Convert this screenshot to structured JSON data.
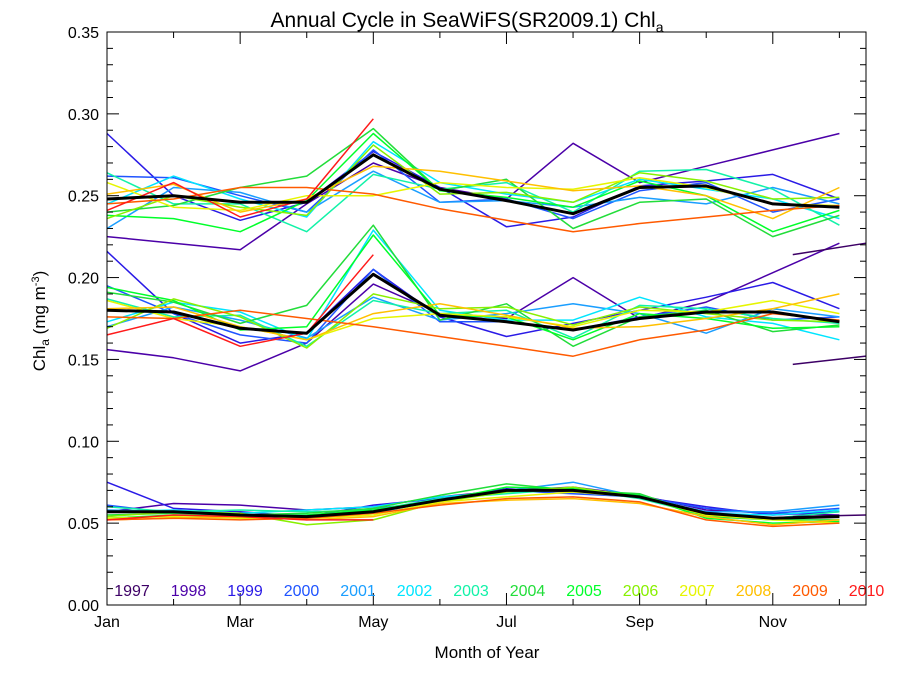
{
  "chart_data": {
    "type": "line",
    "title": {
      "main": "Annual Cycle in SeaWiFS(SR2009.1) Chl",
      "sub": "a"
    },
    "xlabel": "Month of Year",
    "ylabel": {
      "main": "Chl",
      "sub": "a",
      "unit_prefix": " (mg m",
      "unit_sup": "-3",
      "unit_suffix": ")"
    },
    "x_months": [
      1,
      2,
      3,
      4,
      5,
      6,
      7,
      8,
      9,
      10,
      11,
      12
    ],
    "xlim": [
      1,
      12.4
    ],
    "ylim": [
      0,
      0.35
    ],
    "x_ticks": [
      {
        "x": 1,
        "label": "Jan"
      },
      {
        "x": 3,
        "label": "Mar"
      },
      {
        "x": 5,
        "label": "May"
      },
      {
        "x": 7,
        "label": "Jul"
      },
      {
        "x": 9,
        "label": "Sep"
      },
      {
        "x": 11,
        "label": "Nov"
      }
    ],
    "y_ticks": [
      {
        "y": 0.0,
        "label": "0.00"
      },
      {
        "y": 0.05,
        "label": "0.05"
      },
      {
        "y": 0.1,
        "label": "0.10"
      },
      {
        "y": 0.15,
        "label": "0.15"
      },
      {
        "y": 0.2,
        "label": "0.20"
      },
      {
        "y": 0.25,
        "label": "0.25"
      },
      {
        "y": 0.3,
        "label": "0.30"
      },
      {
        "y": 0.35,
        "label": "0.35"
      }
    ],
    "grid": false,
    "legend_position": "bottom",
    "series": [
      {
        "name": "1997",
        "color": "#3d0066",
        "groups": [
          null,
          null,
          null
        ]
      },
      {
        "name": "1998",
        "color": "#4b00a8",
        "groups": [
          [
            0.225,
            0.221,
            0.217,
            0.245,
            0.27,
            0.255,
            0.248,
            0.282,
            0.258,
            0.268,
            0.278,
            0.288
          ],
          [
            0.156,
            0.151,
            0.143,
            0.16,
            0.196,
            0.178,
            0.175,
            0.2,
            0.175,
            0.185,
            0.203,
            0.221
          ],
          [
            0.057,
            0.062,
            0.061,
            0.058,
            0.06,
            0.066,
            0.07,
            0.072,
            0.067,
            0.058,
            0.056,
            0.055
          ]
        ]
      },
      {
        "name": "1999",
        "color": "#2a1ae6",
        "groups": [
          [
            0.288,
            0.25,
            0.235,
            0.246,
            0.277,
            0.255,
            0.231,
            0.237,
            0.256,
            0.259,
            0.263,
            0.248
          ],
          [
            0.216,
            0.178,
            0.16,
            0.166,
            0.205,
            0.176,
            0.164,
            0.172,
            0.18,
            0.188,
            0.197,
            0.181
          ],
          [
            0.075,
            0.059,
            0.057,
            0.054,
            0.061,
            0.065,
            0.071,
            0.069,
            0.066,
            0.06,
            0.055,
            0.057
          ]
        ]
      },
      {
        "name": "2000",
        "color": "#1f54ff",
        "groups": [
          [
            0.262,
            0.261,
            0.25,
            0.24,
            0.278,
            0.246,
            0.248,
            0.236,
            0.253,
            0.258,
            0.24,
            0.248
          ],
          [
            0.195,
            0.178,
            0.165,
            0.16,
            0.205,
            0.173,
            0.173,
            0.168,
            0.176,
            0.182,
            0.174,
            0.176
          ],
          [
            0.061,
            0.056,
            0.055,
            0.053,
            0.059,
            0.063,
            0.07,
            0.068,
            0.066,
            0.059,
            0.056,
            0.059
          ]
        ]
      },
      {
        "name": "2001",
        "color": "#1a9eff",
        "groups": [
          [
            0.23,
            0.255,
            0.252,
            0.24,
            0.265,
            0.246,
            0.247,
            0.243,
            0.249,
            0.245,
            0.255,
            0.245
          ],
          [
            0.17,
            0.182,
            0.174,
            0.163,
            0.188,
            0.174,
            0.178,
            0.184,
            0.178,
            0.166,
            0.181,
            0.176
          ],
          [
            0.058,
            0.057,
            0.055,
            0.055,
            0.056,
            0.064,
            0.07,
            0.075,
            0.066,
            0.057,
            0.057,
            0.061
          ]
        ]
      },
      {
        "name": "2002",
        "color": "#00e5ff",
        "groups": [
          [
            0.245,
            0.262,
            0.248,
            0.237,
            0.283,
            0.258,
            0.251,
            0.246,
            0.26,
            0.254,
            0.248,
            0.236
          ],
          [
            0.173,
            0.185,
            0.179,
            0.162,
            0.229,
            0.18,
            0.174,
            0.174,
            0.188,
            0.176,
            0.172,
            0.162
          ],
          [
            0.057,
            0.058,
            0.056,
            0.058,
            0.06,
            0.066,
            0.069,
            0.07,
            0.067,
            0.056,
            0.055,
            0.058
          ]
        ]
      },
      {
        "name": "2003",
        "color": "#12f2a8",
        "groups": [
          [
            0.264,
            0.245,
            0.245,
            0.228,
            0.263,
            0.254,
            0.258,
            0.24,
            0.265,
            0.266,
            0.254,
            0.232
          ],
          [
            0.187,
            0.176,
            0.177,
            0.158,
            0.186,
            0.178,
            0.18,
            0.163,
            0.183,
            0.181,
            0.175,
            0.172
          ],
          [
            0.06,
            0.057,
            0.058,
            0.057,
            0.058,
            0.065,
            0.068,
            0.071,
            0.065,
            0.055,
            0.053,
            0.057
          ]
        ]
      },
      {
        "name": "2004",
        "color": "#22dd3a",
        "groups": [
          [
            0.24,
            0.244,
            0.255,
            0.262,
            0.291,
            0.253,
            0.26,
            0.23,
            0.246,
            0.248,
            0.225,
            0.238
          ],
          [
            0.191,
            0.185,
            0.172,
            0.183,
            0.232,
            0.174,
            0.184,
            0.158,
            0.176,
            0.18,
            0.167,
            0.171
          ],
          [
            0.055,
            0.056,
            0.055,
            0.056,
            0.059,
            0.067,
            0.074,
            0.07,
            0.068,
            0.054,
            0.052,
            0.052
          ]
        ]
      },
      {
        "name": "2005",
        "color": "#00ff2a",
        "groups": [
          [
            0.238,
            0.236,
            0.228,
            0.247,
            0.288,
            0.253,
            0.249,
            0.243,
            0.259,
            0.25,
            0.228,
            0.241
          ],
          [
            0.194,
            0.186,
            0.168,
            0.17,
            0.226,
            0.177,
            0.176,
            0.162,
            0.178,
            0.175,
            0.169,
            0.17
          ],
          [
            0.053,
            0.055,
            0.054,
            0.055,
            0.058,
            0.064,
            0.072,
            0.071,
            0.067,
            0.053,
            0.05,
            0.051
          ]
        ]
      },
      {
        "name": "2006",
        "color": "#88f000",
        "groups": [
          [
            0.236,
            0.25,
            0.243,
            0.238,
            0.281,
            0.251,
            0.252,
            0.246,
            0.264,
            0.259,
            0.248,
            0.249
          ],
          [
            0.169,
            0.187,
            0.176,
            0.157,
            0.19,
            0.181,
            0.182,
            0.171,
            0.182,
            0.178,
            0.174,
            0.173
          ],
          [
            0.054,
            0.057,
            0.056,
            0.049,
            0.052,
            0.063,
            0.069,
            0.072,
            0.066,
            0.055,
            0.053,
            0.054
          ]
        ]
      },
      {
        "name": "2007",
        "color": "#e6f500",
        "groups": [
          [
            0.258,
            0.243,
            0.241,
            0.25,
            0.25,
            0.258,
            0.255,
            0.254,
            0.261,
            0.255,
            0.245,
            0.244
          ],
          [
            0.186,
            0.175,
            0.17,
            0.162,
            0.175,
            0.178,
            0.176,
            0.17,
            0.18,
            0.179,
            0.186,
            0.178
          ],
          [
            0.053,
            0.054,
            0.053,
            0.053,
            0.055,
            0.063,
            0.066,
            0.069,
            0.066,
            0.055,
            0.052,
            0.05
          ]
        ]
      },
      {
        "name": "2008",
        "color": "#ffc000",
        "groups": [
          [
            0.251,
            0.257,
            0.24,
            0.248,
            0.268,
            0.265,
            0.259,
            0.253,
            0.256,
            0.25,
            0.236,
            0.255
          ],
          [
            0.181,
            0.182,
            0.17,
            0.162,
            0.178,
            0.184,
            0.177,
            0.169,
            0.17,
            0.175,
            0.181,
            0.19
          ],
          [
            0.052,
            0.053,
            0.054,
            0.052,
            0.054,
            0.062,
            0.064,
            0.065,
            0.062,
            0.054,
            0.049,
            0.052
          ]
        ]
      },
      {
        "name": "2009",
        "color": "#ff5a00",
        "groups": [
          [
            0.245,
            0.248,
            0.255,
            0.255,
            0.251,
            0.242,
            0.235,
            0.228,
            0.233,
            0.237,
            0.241,
            0.244
          ],
          [
            0.176,
            0.175,
            0.18,
            0.175,
            0.17,
            0.164,
            0.158,
            0.152,
            0.162,
            0.168,
            0.178,
            0.174
          ],
          [
            0.052,
            0.053,
            0.052,
            0.053,
            0.056,
            0.061,
            0.065,
            0.066,
            0.063,
            0.052,
            0.048,
            0.05
          ]
        ]
      },
      {
        "name": "2010",
        "color": "#ff1a1a",
        "groups": [
          [
            0.241,
            0.258,
            0.237,
            0.248,
            0.297
          ],
          [
            0.165,
            0.175,
            0.158,
            0.166,
            0.214
          ],
          [
            0.052,
            0.055,
            0.054,
            0.052,
            0.052
          ]
        ]
      },
      {
        "name": "",
        "color": "#000000",
        "width": 3,
        "groups": [
          [
            0.248,
            0.25,
            0.246,
            0.246,
            0.275,
            0.254,
            0.247,
            0.239,
            0.255,
            0.256,
            0.245,
            0.243
          ],
          [
            0.18,
            0.179,
            0.169,
            0.166,
            0.202,
            0.177,
            0.173,
            0.168,
            0.175,
            0.179,
            0.179,
            0.173
          ],
          [
            0.057,
            0.057,
            0.055,
            0.054,
            0.057,
            0.064,
            0.07,
            0.07,
            0.066,
            0.056,
            0.053,
            0.054
          ]
        ]
      }
    ],
    "segments_1997": {
      "color": "#3d0066",
      "x": [
        11.3,
        12.4
      ],
      "groups": [
        [
          0.214,
          0.221
        ],
        [
          0.147,
          0.152
        ],
        [
          0.054,
          0.055
        ]
      ]
    }
  }
}
